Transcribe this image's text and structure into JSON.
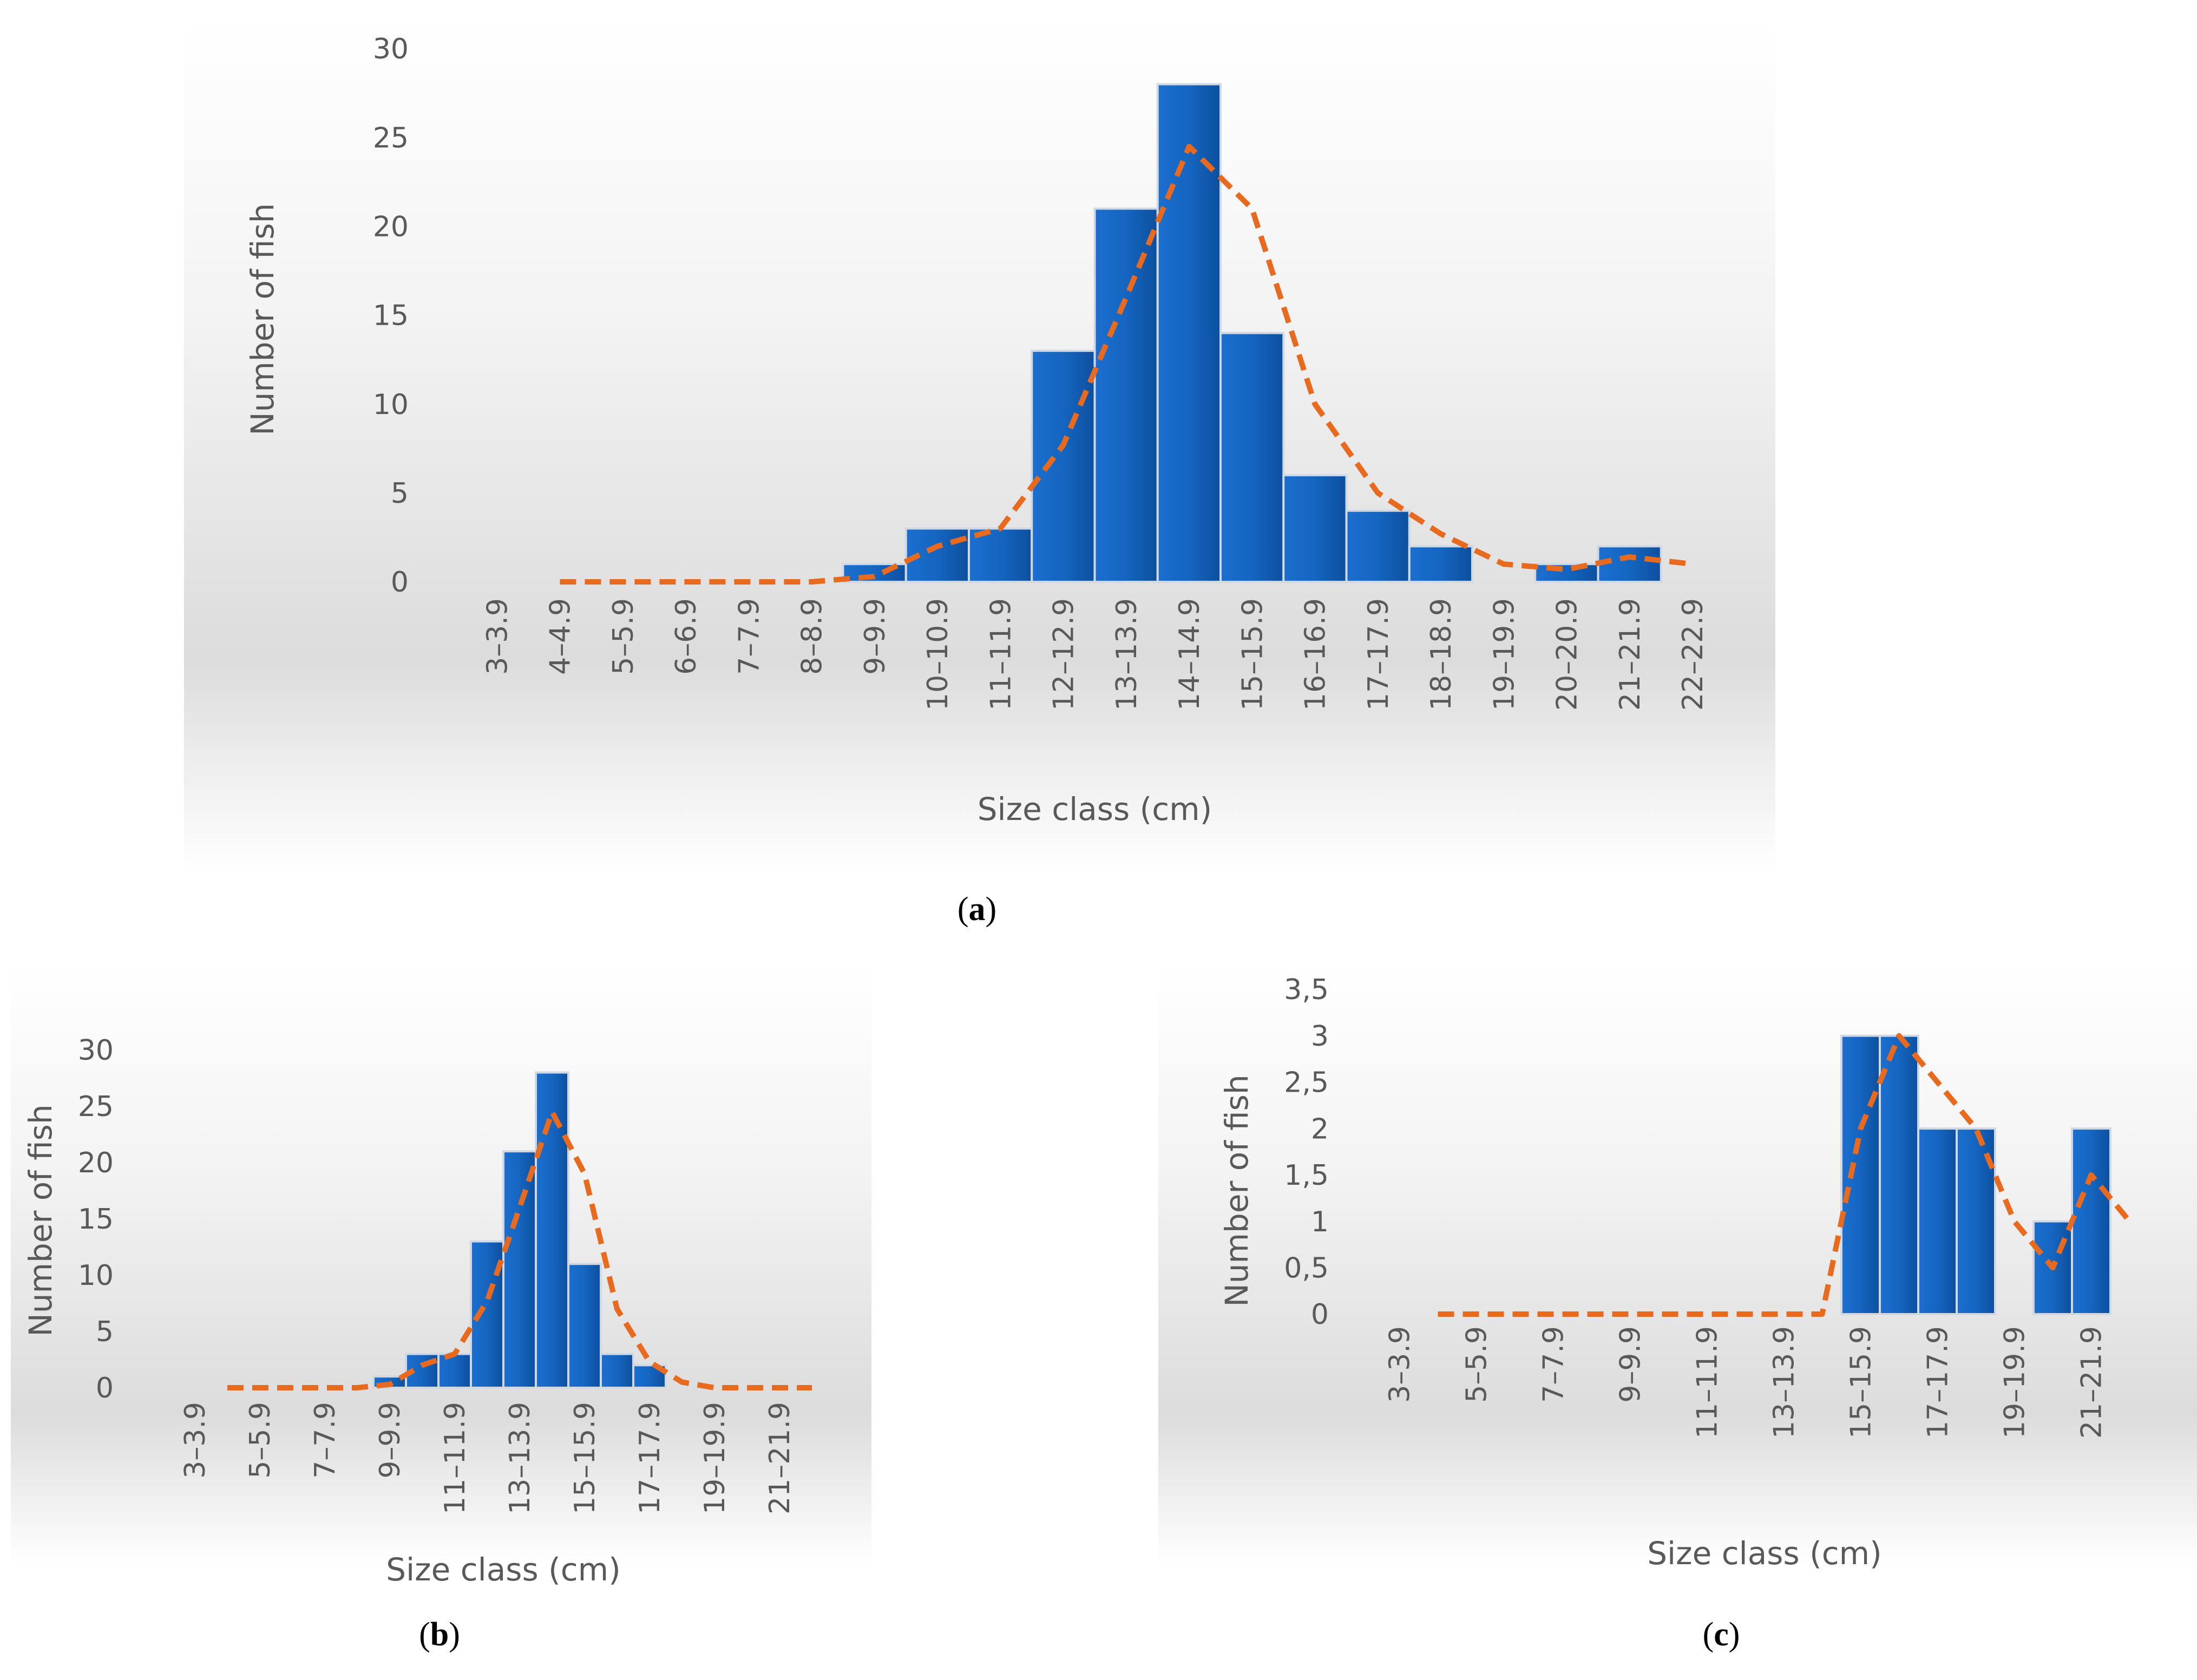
{
  "figure": {
    "captions": {
      "a": "a",
      "b": "b",
      "c": "c"
    }
  },
  "colors": {
    "bar": "#1565c0",
    "bar_edge": "#cfd8e3",
    "trend": "#e86a1e",
    "axis_text": "#595959"
  },
  "chart_data": [
    {
      "id": "a",
      "type": "bar",
      "title": "",
      "xlabel": "Size class (cm)",
      "ylabel": "Number of fish",
      "ylim": [
        0,
        30
      ],
      "yticks": [
        0,
        5,
        10,
        15,
        20,
        25,
        30
      ],
      "ytick_labels": [
        "0",
        "5",
        "10",
        "15",
        "20",
        "25",
        "30"
      ],
      "categories": [
        "3–3.9",
        "4–4.9",
        "5–5.9",
        "6–6.9",
        "7–7.9",
        "8–8.9",
        "9–9.9",
        "10–10.9",
        "11–11.9",
        "12–12.9",
        "13–13.9",
        "14–14.9",
        "15–15.9",
        "16–16.9",
        "17–17.9",
        "18–18.9",
        "19–19.9",
        "20–20.9",
        "21–21.9",
        "22–22.9"
      ],
      "category_labels": [
        "3–3.9",
        "4–4.9",
        "5–5.9",
        "6–6.9",
        "7–7.9",
        "8–8.9",
        "9–9.9",
        "10–10.9",
        "11–11.9",
        "12–12.9",
        "13–13.9",
        "14–14.9",
        "15–15.9",
        "16–16.9",
        "17–17.9",
        "18–18.9",
        "19–19.9",
        "20–20.9",
        "21–21.9",
        "22–22.9"
      ],
      "values": [
        0,
        0,
        0,
        0,
        0,
        0,
        1,
        3,
        3,
        13,
        21,
        28,
        14,
        6,
        4,
        2,
        0,
        1,
        2,
        0
      ],
      "trend": {
        "style": "dashed",
        "x_start": 1,
        "values": [
          0,
          0,
          0,
          0,
          0,
          0.3,
          2,
          3,
          7.7,
          16,
          24.5,
          21,
          10,
          5,
          2.7,
          1,
          0.7,
          1.4,
          1
        ]
      }
    },
    {
      "id": "b",
      "type": "bar",
      "title": "",
      "xlabel": "Size class (cm)",
      "ylabel": "Number of fish",
      "ylim": [
        0,
        30
      ],
      "yticks": [
        0,
        5,
        10,
        15,
        20,
        25,
        30
      ],
      "ytick_labels": [
        "0",
        "5",
        "10",
        "15",
        "20",
        "25",
        "30"
      ],
      "categories": [
        "3–3.9",
        "4–4.9",
        "5–5.9",
        "6–6.9",
        "7–7.9",
        "8–8.9",
        "9–9.9",
        "10–10.9",
        "11–11.9",
        "12–12.9",
        "13–13.9",
        "14–14.9",
        "15–15.9",
        "16–16.9",
        "17–17.9",
        "18–18.9",
        "19–19.9",
        "20–20.9",
        "21–21.9",
        "22–22.9"
      ],
      "category_labels": [
        "3–3.9",
        "",
        "5–5.9",
        "",
        "7–7.9",
        "",
        "9–9.9",
        "",
        "11–11.9",
        "",
        "13–13.9",
        "",
        "15–15.9",
        "",
        "17–17.9",
        "",
        "19–19.9",
        "",
        "21–21.9",
        ""
      ],
      "values": [
        0,
        0,
        0,
        0,
        0,
        0,
        1,
        3,
        3,
        13,
        21,
        28,
        11,
        3,
        2,
        0,
        0,
        0,
        0,
        0
      ],
      "trend": {
        "style": "dashed",
        "x_start": 1,
        "values": [
          0,
          0,
          0,
          0,
          0,
          0.3,
          2,
          3,
          7.7,
          16,
          24.5,
          19,
          7,
          2.3,
          0.5,
          0,
          0,
          0,
          0
        ]
      }
    },
    {
      "id": "c",
      "type": "bar",
      "title": "",
      "xlabel": "Size class (cm)",
      "ylabel": "Number of fish",
      "ylim": [
        0,
        3.5
      ],
      "yticks": [
        0,
        0.5,
        1,
        1.5,
        2,
        2.5,
        3,
        3.5
      ],
      "ytick_labels": [
        "0",
        "0,5",
        "1",
        "1,5",
        "2",
        "2,5",
        "3",
        "3,5"
      ],
      "categories": [
        "3–3.9",
        "4–4.9",
        "5–5.9",
        "6–6.9",
        "7–7.9",
        "8–8.9",
        "9–9.9",
        "10–10.9",
        "11–11.9",
        "12–12.9",
        "13–13.9",
        "14–14.9",
        "15–15.9",
        "16–16.9",
        "17–17.9",
        "18–18.9",
        "19–19.9",
        "20–20.9",
        "21–21.9",
        "22–22.9"
      ],
      "category_labels": [
        "3–3.9",
        "",
        "5–5.9",
        "",
        "7–7.9",
        "",
        "9–9.9",
        "",
        "11–11.9",
        "",
        "13–13.9",
        "",
        "15–15.9",
        "",
        "17–17.9",
        "",
        "19–19.9",
        "",
        "21–21.9",
        ""
      ],
      "values": [
        0,
        0,
        0,
        0,
        0,
        0,
        0,
        0,
        0,
        0,
        0,
        0,
        3,
        3,
        2,
        2,
        0,
        1,
        2,
        0
      ],
      "trend": {
        "style": "dashed",
        "x_start": 1,
        "values": [
          0,
          0,
          0,
          0,
          0,
          0,
          0,
          0,
          0,
          0,
          0,
          2,
          3,
          2.5,
          2,
          1,
          0.5,
          1.5,
          1
        ]
      }
    }
  ]
}
